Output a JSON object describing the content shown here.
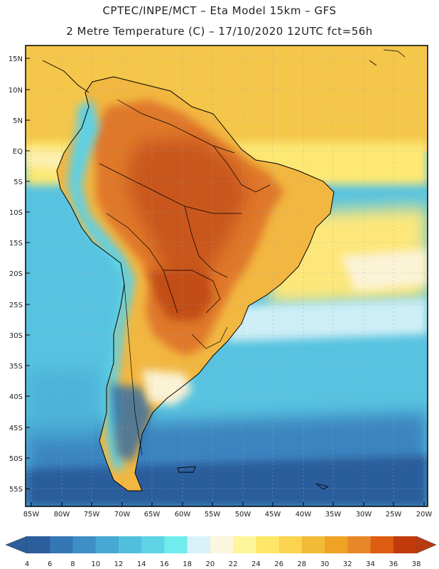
{
  "header": {
    "line1": "CPTEC/INPE/MCT –  Eta Model 15km – GFS",
    "line2": "2 Metre Temperature (C) – 17/10/2020 12UTC fct=56h"
  },
  "axes": {
    "lat_labels": [
      "15N",
      "10N",
      "5N",
      "EQ",
      "5S",
      "10S",
      "15S",
      "20S",
      "25S",
      "30S",
      "35S",
      "40S",
      "45S",
      "50S",
      "55S"
    ],
    "lon_labels": [
      "85W",
      "80W",
      "75W",
      "70W",
      "65W",
      "60W",
      "55W",
      "50W",
      "45W",
      "40W",
      "35W",
      "30W",
      "25W",
      "20W"
    ]
  },
  "colorbar": {
    "ticks": [
      "4",
      "6",
      "8",
      "10",
      "12",
      "14",
      "16",
      "18",
      "20",
      "22",
      "24",
      "26",
      "28",
      "30",
      "32",
      "34",
      "36",
      "38"
    ],
    "colors": [
      "#2c5d9c",
      "#3477b4",
      "#3d8fc6",
      "#46a9d4",
      "#53bfde",
      "#5fd3e6",
      "#70ecef",
      "#d8f3f8",
      "#fbf6df",
      "#fff59a",
      "#fee768",
      "#fbd34f",
      "#f2bb37",
      "#efa325",
      "#e8862a",
      "#dd5d12",
      "#c03a0a"
    ],
    "low_color": "#2c5d9c",
    "high_color": "#b83a10"
  }
}
